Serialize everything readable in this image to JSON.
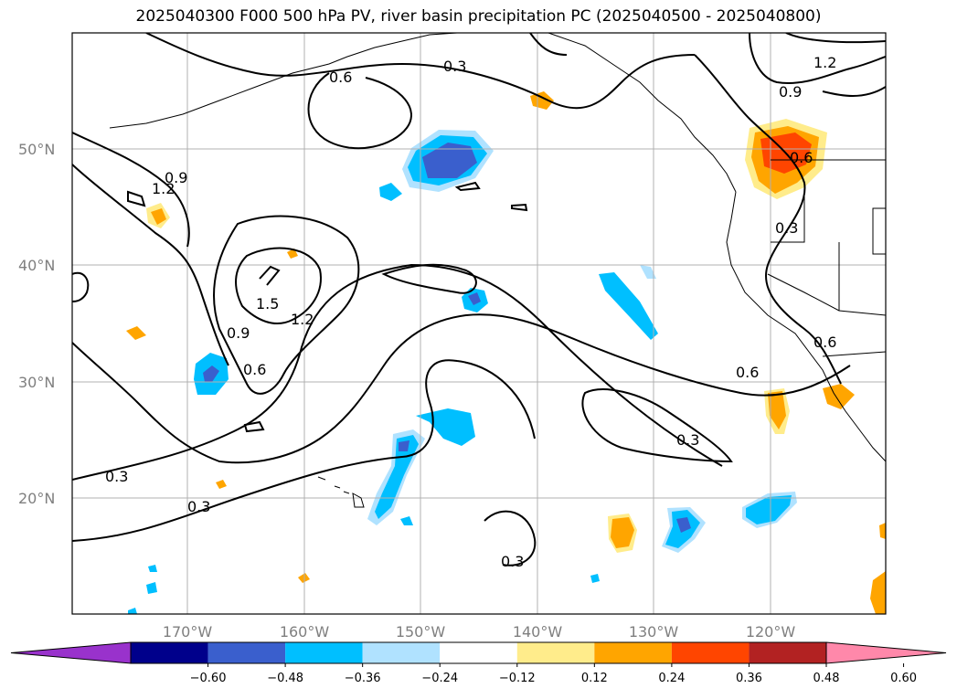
{
  "title": "2025040300 F000 500 hPa PV, river basin precipitation PC (2025040500 - 2025040800)",
  "lat_labels": [
    "50°N",
    "40°N",
    "30°N",
    "20°N"
  ],
  "lon_labels": [
    "170°W",
    "160°W",
    "150°W",
    "140°W",
    "130°W",
    "120°W"
  ],
  "contour_labels": [
    "0.3",
    "0.3",
    "0.3",
    "0.3",
    "0.3",
    "0.3",
    "0.6",
    "0.6",
    "0.6",
    "0.6",
    "0.6",
    "0.9",
    "0.9",
    "0.9",
    "1.2",
    "1.2",
    "1.2",
    "1.5"
  ],
  "colorbar": {
    "ticks": [
      "−0.60",
      "−0.48",
      "−0.36",
      "−0.24",
      "−0.12",
      "0.12",
      "0.24",
      "0.36",
      "0.48",
      "0.60"
    ],
    "colors": [
      "#9932cc",
      "#00008b",
      "#3a5fcd",
      "#00bfff",
      "#b0e2ff",
      "#ffffff",
      "#ffec8b",
      "#ffa500",
      "#ff4500",
      "#b22222",
      "#ff88aa"
    ]
  },
  "palette": {
    "neg_strong": "#3a5fcd",
    "neg_mid": "#00bfff",
    "neg_weak": "#b0e2ff",
    "pos_weak": "#ffec8b",
    "pos_mid": "#ffa500",
    "pos_strong": "#ff4500"
  }
}
